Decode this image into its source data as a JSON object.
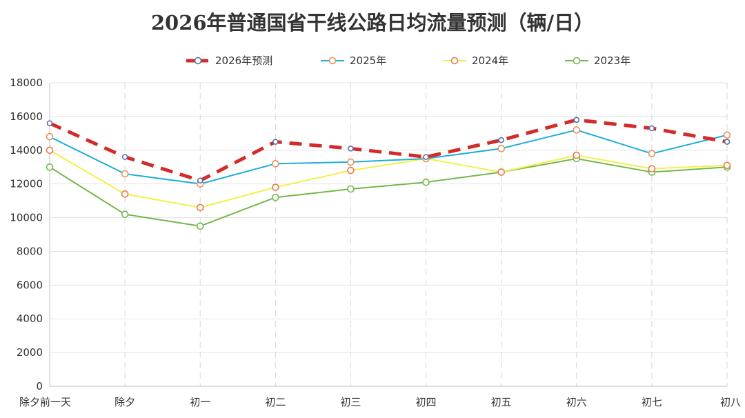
{
  "chart_data": {
    "type": "line",
    "title": "2026年普通国省干线公路日均流量预测（辆/日）",
    "xlabel": "",
    "ylabel": "",
    "ylim": [
      0,
      18000
    ],
    "yticks": [
      0,
      2000,
      4000,
      6000,
      8000,
      10000,
      12000,
      14000,
      16000,
      18000
    ],
    "grid": true,
    "legend_position": "top",
    "categories": [
      "除夕前一天",
      "除夕",
      "初一",
      "初二",
      "初三",
      "初四",
      "初五",
      "初六",
      "初七",
      "初八"
    ],
    "series": [
      {
        "name": "2026年预测",
        "color": "#d42a2a",
        "style": "dashed",
        "marker_color": "#5a6fa8",
        "values": [
          15600,
          13600,
          12200,
          14500,
          14100,
          13600,
          14600,
          15800,
          15300,
          14500
        ]
      },
      {
        "name": "2025年",
        "color": "#1aaed9",
        "style": "solid",
        "marker_color": "#e6935a",
        "values": [
          14800,
          12600,
          12000,
          13200,
          13300,
          13500,
          14100,
          15200,
          13800,
          14900
        ]
      },
      {
        "name": "2024年",
        "color": "#f4ef4a",
        "style": "solid",
        "marker_color": "#ea7a4a",
        "values": [
          14000,
          11400,
          10600,
          11800,
          12800,
          13500,
          12700,
          13700,
          12900,
          13100
        ]
      },
      {
        "name": "2023年",
        "color": "#72b84a",
        "style": "solid",
        "marker_color": "#72b84a",
        "values": [
          13000,
          10200,
          9500,
          11200,
          11700,
          12100,
          12700,
          13500,
          12700,
          13000
        ]
      }
    ]
  }
}
